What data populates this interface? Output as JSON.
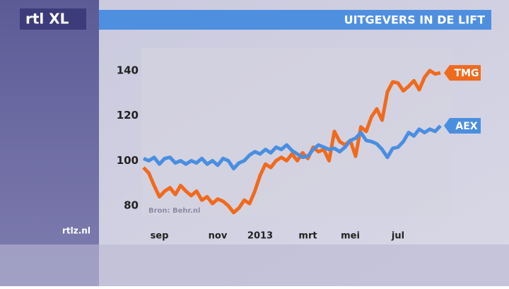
{
  "logo": "rtl XL",
  "site": "rtlz.nl",
  "chart_data": {
    "type": "line",
    "title": "UITGEVERS IN DE LIFT",
    "source": "Bron: Behr.nl",
    "categories": [
      null,
      null,
      null,
      "sep",
      null,
      null,
      null,
      null,
      null,
      null,
      null,
      null,
      null,
      null,
      "nov",
      null,
      null,
      null,
      null,
      null,
      null,
      null,
      "2013",
      null,
      null,
      null,
      null,
      null,
      null,
      null,
      null,
      "mrt",
      null,
      null,
      null,
      null,
      null,
      null,
      null,
      "mei",
      null,
      null,
      null,
      null,
      null,
      null,
      null,
      null,
      "jul",
      null,
      null,
      null,
      null,
      null,
      null,
      null,
      null
    ],
    "series": [
      {
        "name": "TMG",
        "color": "#f06a1e",
        "values": [
          97,
          94.5,
          89,
          84,
          86.5,
          88,
          85,
          89,
          86.5,
          84.5,
          86.5,
          82.5,
          84,
          81,
          83,
          82,
          80,
          77,
          79,
          82.5,
          81,
          86.5,
          93.5,
          98.5,
          97,
          100,
          101.5,
          100,
          103,
          100,
          103.5,
          101,
          106,
          104,
          105,
          100,
          113,
          108.5,
          107,
          109,
          102,
          115,
          113,
          119.5,
          123,
          118,
          130.5,
          135,
          134.5,
          131,
          133,
          135.5,
          131.5,
          137,
          140,
          138.5,
          139
        ]
      },
      {
        "name": "AEX",
        "color": "#4a8ee0",
        "values": [
          101,
          100,
          101.5,
          98.5,
          101,
          101.5,
          99,
          100,
          98.5,
          100,
          99,
          101,
          98.5,
          100,
          98,
          101,
          100,
          96.5,
          99,
          100,
          102.5,
          104,
          103,
          105,
          103.5,
          106,
          105,
          107,
          104.5,
          103,
          101.5,
          102,
          105,
          107,
          106,
          105,
          105.5,
          104,
          106,
          109,
          110,
          112.5,
          109,
          108.5,
          107.5,
          105,
          101.5,
          105.5,
          106,
          108.5,
          112.5,
          111,
          114,
          112.5,
          114,
          113,
          115.5
        ]
      }
    ],
    "ylim": [
      76,
      150
    ],
    "yticks": [
      80,
      100,
      120,
      140
    ]
  }
}
